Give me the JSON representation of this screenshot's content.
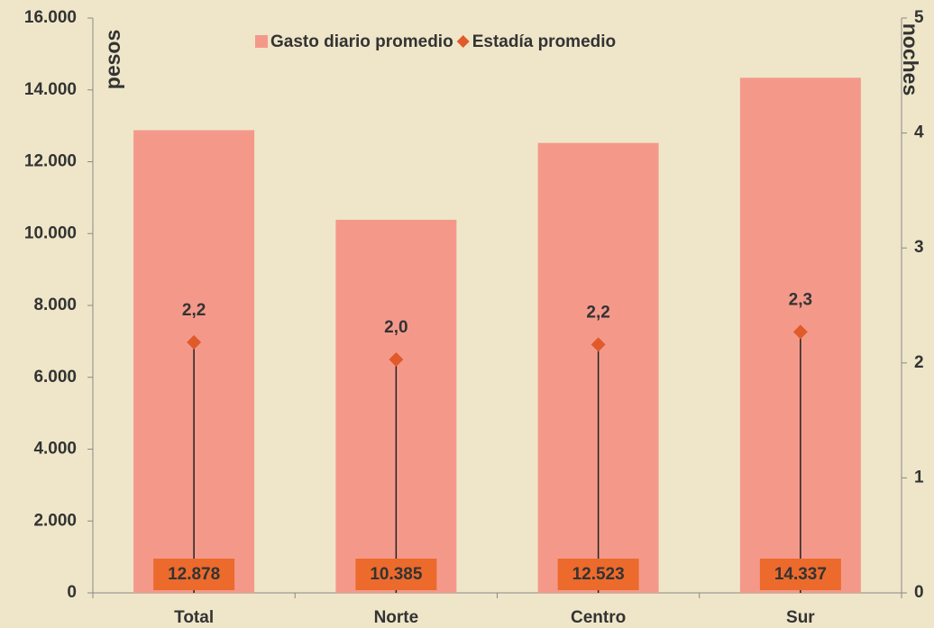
{
  "chart_data": {
    "type": "bar",
    "categories": [
      "Total",
      "Norte",
      "Centro",
      "Sur"
    ],
    "series": [
      {
        "name": "Gasto diario promedio",
        "color": "#f4998a",
        "values": [
          12878,
          10385,
          12523,
          14337
        ],
        "value_labels": [
          "12.878",
          "10.385",
          "12.523",
          "14.337"
        ],
        "label_color": "#ec6a2c"
      },
      {
        "name": "Estadía promedio",
        "color": "#e05a2a",
        "axis": "y2",
        "marker": "diamond",
        "values": [
          2.18,
          2.03,
          2.16,
          2.27
        ],
        "value_labels": [
          "2,2",
          "2,0",
          "2,2",
          "2,3"
        ]
      }
    ],
    "ylabel": "pesos",
    "y2label": "noches",
    "ylim": [
      0,
      16000
    ],
    "yticks": [
      0,
      {
        "value": 2000,
        "label": "2.000"
      },
      {
        "value": 4000,
        "label": "4.000"
      },
      {
        "value": 6000,
        "label": "6.000"
      },
      {
        "value": 8000,
        "label": "8.000"
      },
      {
        "value": 10000,
        "label": "10.000"
      },
      {
        "value": 12000,
        "label": "12.000"
      },
      {
        "value": 14000,
        "label": "14.000"
      },
      {
        "value": 16000,
        "label": "16.000"
      }
    ],
    "y2lim": [
      0,
      5
    ],
    "y2ticks": [
      0,
      1,
      2,
      3,
      4,
      5
    ],
    "legend": "top"
  }
}
